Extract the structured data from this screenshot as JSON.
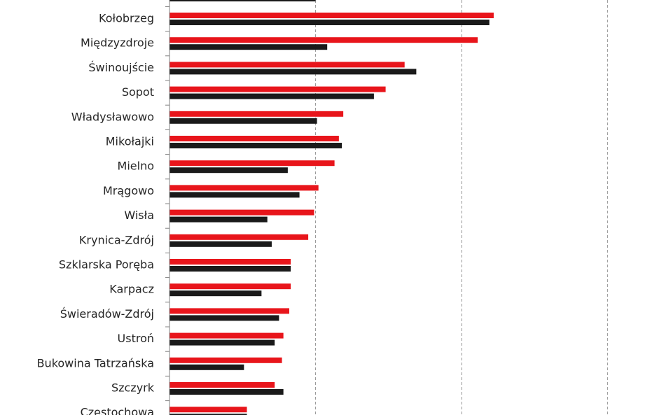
{
  "chart_data": {
    "type": "bar",
    "orientation": "horizontal",
    "categories": [
      "Kołobrzeg",
      "Międzyzdroje",
      "Świnoujście",
      "Sopot",
      "Władysławowo",
      "Mikołajki",
      "Mielno",
      "Mrągowo",
      "Wisła",
      "Krynica-Zdrój",
      "Szklarska Poręba",
      "Karpacz",
      "Świeradów-Zdrój",
      "Ustroń",
      "Bukowina Tatrzańska",
      "Szczyrk",
      "Częstochowa"
    ],
    "series": [
      {
        "color": "#e8151b",
        "values": [
          2.22,
          2.11,
          1.61,
          1.48,
          1.19,
          1.16,
          1.13,
          1.02,
          0.99,
          0.95,
          0.83,
          0.83,
          0.82,
          0.78,
          0.77,
          0.72,
          0.53
        ]
      },
      {
        "color": "#1a1a1a",
        "values": [
          2.19,
          1.08,
          1.69,
          1.4,
          1.01,
          1.18,
          0.81,
          0.89,
          0.67,
          0.7,
          0.83,
          0.63,
          0.75,
          0.72,
          0.51,
          0.78,
          0.53
        ]
      }
    ],
    "top_partial_bar_values": [
      null,
      1.0
    ],
    "xlim": [
      0,
      3.25
    ],
    "grid": "vertical dashed",
    "gridlines_at": [
      1,
      2,
      3
    ],
    "legend": "none visible",
    "title": "",
    "xlabel": "",
    "ylabel": ""
  }
}
